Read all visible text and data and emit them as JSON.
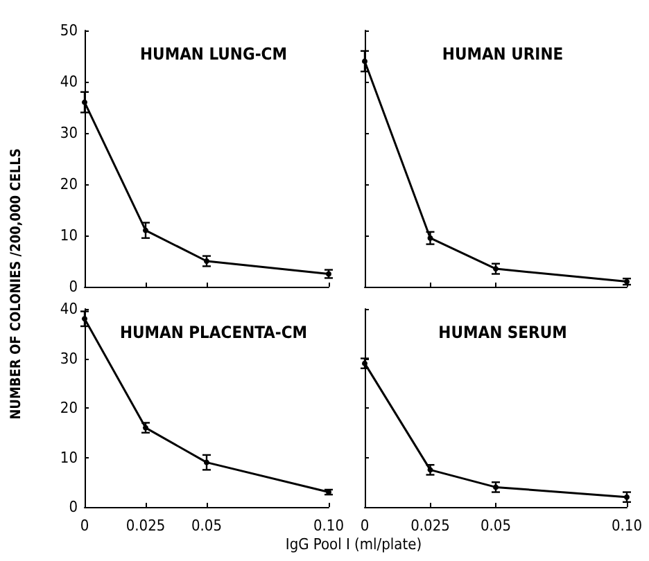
{
  "chart_data": [
    {
      "type": "line",
      "title": "HUMAN LUNG-CM",
      "ylabel": "NUMBER OF COLONIES /200,000 CELLS",
      "x": [
        0,
        0.025,
        0.05,
        0.1
      ],
      "series": [
        {
          "color": "#000000",
          "values": [
            36,
            11,
            5,
            2.5
          ],
          "errors": [
            2,
            1.5,
            1,
            0.8
          ]
        }
      ],
      "xlim": [
        0,
        0.1
      ],
      "xticks": [
        0,
        0.025,
        0.05,
        0.1
      ],
      "ylim": [
        0,
        50
      ],
      "yticks": [
        0,
        10,
        20,
        30,
        40,
        50
      ],
      "tick_labels": "y",
      "marker": "circle",
      "grid": false
    },
    {
      "type": "line",
      "title": "HUMAN URINE",
      "x": [
        0,
        0.025,
        0.05,
        0.1
      ],
      "series": [
        {
          "color": "#000000",
          "values": [
            44,
            9.5,
            3.5,
            1
          ],
          "errors": [
            2,
            1.2,
            1,
            0.6
          ]
        }
      ],
      "xlim": [
        0,
        0.1
      ],
      "xticks": [
        0,
        0.025,
        0.05,
        0.1
      ],
      "ylim": [
        0,
        50
      ],
      "yticks": [
        0,
        10,
        20,
        30,
        40,
        50
      ],
      "tick_labels": false,
      "marker": "circle",
      "grid": false
    },
    {
      "type": "line",
      "title": "HUMAN PLACENTA-CM",
      "xlabel": "IgG Pool I (ml/plate)",
      "x": [
        0,
        0.025,
        0.05,
        0.1
      ],
      "series": [
        {
          "color": "#000000",
          "values": [
            38,
            16,
            9,
            3
          ],
          "errors": [
            1.5,
            1,
            1.5,
            0.5
          ]
        }
      ],
      "xlim": [
        0,
        0.1
      ],
      "xticks": [
        0,
        0.025,
        0.05,
        {
          "value": 0.1,
          "label": "0.10"
        }
      ],
      "ylim": [
        0,
        40
      ],
      "yticks": [
        0,
        10,
        20,
        30,
        40
      ],
      "marker": "circle",
      "grid": false
    },
    {
      "type": "line",
      "title": "HUMAN SERUM",
      "x": [
        0,
        0.025,
        0.05,
        0.1
      ],
      "series": [
        {
          "color": "#000000",
          "values": [
            29,
            7.5,
            4,
            2
          ],
          "errors": [
            1,
            1,
            1,
            1
          ]
        }
      ],
      "xlim": [
        0,
        0.1
      ],
      "xticks": [
        0,
        0.025,
        0.05,
        {
          "value": 0.1,
          "label": "0.10"
        }
      ],
      "ylim": [
        0,
        40
      ],
      "yticks": [
        0,
        10,
        20,
        30,
        40
      ],
      "tick_labels": "x",
      "marker": "circle",
      "grid": false
    }
  ]
}
